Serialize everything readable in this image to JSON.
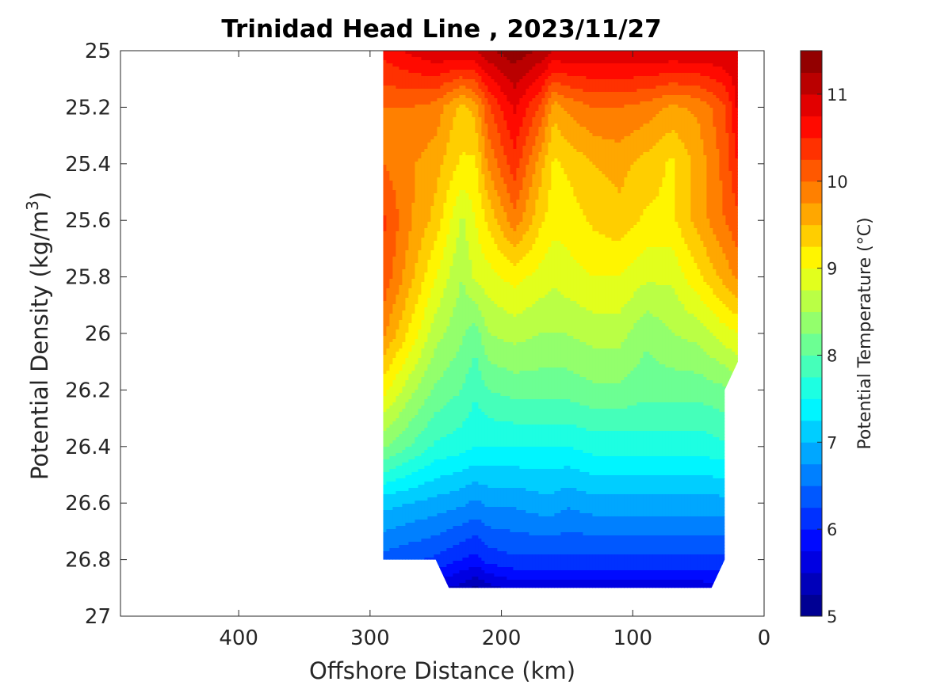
{
  "chart_data": {
    "type": "heatmap",
    "subtype": "filled-contour",
    "title": "Trinidad Head Line , 2023/11/27",
    "xlabel": "Offshore Distance (km)",
    "ylabel": "Potential Density (kg/m",
    "ylabel_sup": "3",
    "ylabel_close": ")",
    "colorbar_label": "Potential Temperature (°C)",
    "xlim": [
      490,
      0
    ],
    "x_reversed": true,
    "ylim": [
      25,
      27
    ],
    "y_reversed": true,
    "xticks": [
      400,
      300,
      200,
      100,
      0
    ],
    "xtick_labels": [
      "400",
      "300",
      "200",
      "100",
      "0"
    ],
    "yticks": [
      25,
      25.2,
      25.4,
      25.6,
      25.8,
      26,
      26.2,
      26.4,
      26.6,
      26.8,
      27
    ],
    "ytick_labels": [
      "25",
      "25.2",
      "25.4",
      "25.6",
      "25.8",
      "26",
      "26.2",
      "26.4",
      "26.6",
      "26.8",
      "27"
    ],
    "colorbar_range": [
      5,
      11.5
    ],
    "colorbar_ticks": [
      5,
      6,
      7,
      8,
      9,
      10,
      11
    ],
    "colorbar_tick_labels": [
      "5",
      "6",
      "7",
      "8",
      "9",
      "10",
      "11"
    ],
    "contour_step": 0.25,
    "colormap": "jet",
    "stations_km": [
      290,
      270,
      250,
      230,
      220,
      210,
      190,
      170,
      160,
      150,
      130,
      110,
      90,
      70,
      50,
      30,
      20
    ],
    "density_levels": [
      25.0,
      25.2,
      25.4,
      25.6,
      25.8,
      26.0,
      26.2,
      26.4,
      26.6,
      26.8,
      26.9
    ],
    "temperature": [
      [
        10.6,
        10.8,
        11.0,
        11.0,
        11.0,
        11.2,
        11.4,
        11.2,
        11.0,
        11.0,
        11.0,
        11.0,
        11.0,
        11.0,
        11.0,
        11.0,
        11.0
      ],
      [
        10.0,
        10.0,
        9.9,
        9.4,
        9.6,
        10.2,
        10.8,
        10.2,
        9.6,
        9.8,
        10.0,
        10.0,
        9.9,
        9.7,
        9.8,
        10.2,
        10.8
      ],
      [
        10.0,
        9.8,
        9.6,
        9.2,
        9.2,
        9.8,
        10.4,
        9.6,
        9.2,
        9.3,
        9.5,
        9.6,
        9.4,
        9.2,
        9.6,
        10.1,
        10.5
      ],
      [
        10.3,
        9.8,
        9.4,
        8.7,
        9.0,
        9.3,
        9.9,
        9.3,
        9.1,
        9.1,
        9.3,
        9.4,
        9.2,
        9.2,
        9.6,
        10.0,
        10.2
      ],
      [
        10.2,
        9.6,
        9.0,
        8.5,
        8.8,
        8.9,
        9.1,
        8.9,
        8.8,
        8.9,
        9.0,
        9.0,
        8.8,
        8.8,
        9.2,
        9.6,
        9.8
      ],
      [
        9.8,
        9.2,
        8.6,
        8.3,
        8.1,
        8.5,
        8.6,
        8.5,
        8.5,
        8.5,
        8.6,
        8.6,
        8.3,
        8.5,
        8.6,
        8.9,
        9.0
      ],
      [
        9.1,
        8.6,
        8.2,
        8.0,
        7.8,
        8.0,
        8.1,
        8.1,
        8.1,
        8.1,
        8.2,
        8.2,
        8.1,
        8.1,
        8.1,
        8.2,
        8.4
      ],
      [
        8.3,
        8.0,
        7.7,
        7.6,
        7.5,
        7.5,
        7.5,
        7.5,
        7.5,
        7.5,
        7.6,
        7.6,
        7.6,
        7.6,
        7.6,
        7.7,
        7.8
      ],
      [
        7.1,
        7.0,
        6.9,
        6.8,
        6.7,
        6.8,
        6.8,
        6.9,
        6.9,
        6.8,
        6.9,
        6.9,
        6.9,
        6.9,
        6.9,
        6.9,
        7.0
      ],
      [
        6.4,
        6.3,
        6.2,
        6.0,
        5.9,
        6.1,
        6.2,
        6.2,
        6.2,
        6.2,
        6.2,
        6.2,
        6.2,
        6.2,
        6.2,
        6.2,
        6.3
      ],
      [
        5.8,
        5.8,
        5.6,
        5.4,
        5.2,
        5.4,
        5.6,
        5.6,
        5.6,
        5.6,
        5.6,
        5.6,
        5.6,
        5.6,
        5.6,
        5.7,
        5.8
      ]
    ],
    "valid_region": [
      [
        290,
        25.0
      ],
      [
        20,
        25.0
      ],
      [
        20,
        26.1
      ],
      [
        30,
        26.2
      ],
      [
        30,
        26.8
      ],
      [
        40,
        26.9
      ],
      [
        240,
        26.9
      ],
      [
        250,
        26.8
      ],
      [
        290,
        26.8
      ]
    ],
    "grid": false,
    "legend": "none"
  }
}
